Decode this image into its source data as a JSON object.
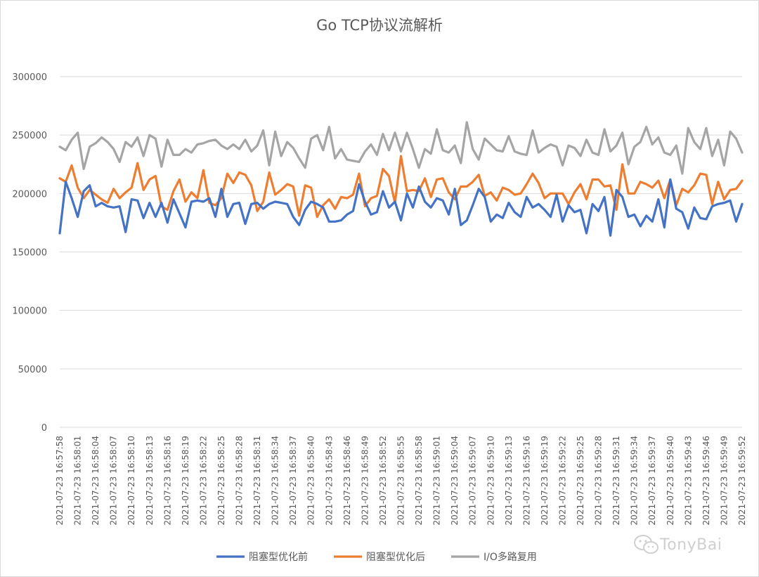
{
  "chart_data": {
    "type": "line",
    "title": "Go TCP协议流解析",
    "ylim": [
      0,
      300000
    ],
    "y_ticks": [
      0,
      50000,
      100000,
      150000,
      200000,
      250000,
      300000
    ],
    "grid": true,
    "legend_position": "bottom",
    "x": [
      "2021-07-23 16:57:58",
      "2021-07-23 16:57:59",
      "2021-07-23 16:58:00",
      "2021-07-23 16:58:01",
      "2021-07-23 16:58:02",
      "2021-07-23 16:58:03",
      "2021-07-23 16:58:04",
      "2021-07-23 16:58:05",
      "2021-07-23 16:58:06",
      "2021-07-23 16:58:07",
      "2021-07-23 16:58:08",
      "2021-07-23 16:58:09",
      "2021-07-23 16:58:10",
      "2021-07-23 16:58:11",
      "2021-07-23 16:58:12",
      "2021-07-23 16:58:13",
      "2021-07-23 16:58:14",
      "2021-07-23 16:58:15",
      "2021-07-23 16:58:16",
      "2021-07-23 16:58:17",
      "2021-07-23 16:58:18",
      "2021-07-23 16:58:19",
      "2021-07-23 16:58:20",
      "2021-07-23 16:58:21",
      "2021-07-23 16:58:22",
      "2021-07-23 16:58:23",
      "2021-07-23 16:58:24",
      "2021-07-23 16:58:25",
      "2021-07-23 16:58:26",
      "2021-07-23 16:58:27",
      "2021-07-23 16:58:28",
      "2021-07-23 16:58:29",
      "2021-07-23 16:58:30",
      "2021-07-23 16:58:31",
      "2021-07-23 16:58:32",
      "2021-07-23 16:58:33",
      "2021-07-23 16:58:34",
      "2021-07-23 16:58:35",
      "2021-07-23 16:58:36",
      "2021-07-23 16:58:37",
      "2021-07-23 16:58:38",
      "2021-07-23 16:58:39",
      "2021-07-23 16:58:40",
      "2021-07-23 16:58:41",
      "2021-07-23 16:58:42",
      "2021-07-23 16:58:43",
      "2021-07-23 16:58:44",
      "2021-07-23 16:58:45",
      "2021-07-23 16:58:46",
      "2021-07-23 16:58:47",
      "2021-07-23 16:58:48",
      "2021-07-23 16:58:49",
      "2021-07-23 16:58:50",
      "2021-07-23 16:58:51",
      "2021-07-23 16:58:52",
      "2021-07-23 16:58:53",
      "2021-07-23 16:58:54",
      "2021-07-23 16:58:55",
      "2021-07-23 16:58:56",
      "2021-07-23 16:58:57",
      "2021-07-23 16:58:58",
      "2021-07-23 16:58:59",
      "2021-07-23 16:59:00",
      "2021-07-23 16:59:01",
      "2021-07-23 16:59:02",
      "2021-07-23 16:59:03",
      "2021-07-23 16:59:04",
      "2021-07-23 16:59:05",
      "2021-07-23 16:59:06",
      "2021-07-23 16:59:07",
      "2021-07-23 16:59:08",
      "2021-07-23 16:59:09",
      "2021-07-23 16:59:10",
      "2021-07-23 16:59:11",
      "2021-07-23 16:59:12",
      "2021-07-23 16:59:13",
      "2021-07-23 16:59:14",
      "2021-07-23 16:59:15",
      "2021-07-23 16:59:16",
      "2021-07-23 16:59:17",
      "2021-07-23 16:59:18",
      "2021-07-23 16:59:19",
      "2021-07-23 16:59:20",
      "2021-07-23 16:59:21",
      "2021-07-23 16:59:22",
      "2021-07-23 16:59:23",
      "2021-07-23 16:59:24",
      "2021-07-23 16:59:25",
      "2021-07-23 16:59:26",
      "2021-07-23 16:59:27",
      "2021-07-23 16:59:28",
      "2021-07-23 16:59:29",
      "2021-07-23 16:59:30",
      "2021-07-23 16:59:31",
      "2021-07-23 16:59:32",
      "2021-07-23 16:59:33",
      "2021-07-23 16:59:34",
      "2021-07-23 16:59:35",
      "2021-07-23 16:59:36",
      "2021-07-23 16:59:37",
      "2021-07-23 16:59:38",
      "2021-07-23 16:59:39",
      "2021-07-23 16:59:40",
      "2021-07-23 16:59:41",
      "2021-07-23 16:59:42",
      "2021-07-23 16:59:43",
      "2021-07-23 16:59:44",
      "2021-07-23 16:59:45",
      "2021-07-23 16:59:46",
      "2021-07-23 16:59:47",
      "2021-07-23 16:59:48",
      "2021-07-23 16:59:49",
      "2021-07-23 16:59:50",
      "2021-07-23 16:59:51",
      "2021-07-23 16:59:52"
    ],
    "x_tick_labels": [
      "2021-07-23 16:57:58",
      "2021-07-23 16:58:01",
      "2021-07-23 16:58:04",
      "2021-07-23 16:58:07",
      "2021-07-23 16:58:10",
      "2021-07-23 16:58:13",
      "2021-07-23 16:58:16",
      "2021-07-23 16:58:19",
      "2021-07-23 16:58:22",
      "2021-07-23 16:58:25",
      "2021-07-23 16:58:28",
      "2021-07-23 16:58:31",
      "2021-07-23 16:58:34",
      "2021-07-23 16:58:37",
      "2021-07-23 16:58:40",
      "2021-07-23 16:58:43",
      "2021-07-23 16:58:46",
      "2021-07-23 16:58:49",
      "2021-07-23 16:58:52",
      "2021-07-23 16:58:55",
      "2021-07-23 16:58:58",
      "2021-07-23 16:59:01",
      "2021-07-23 16:59:04",
      "2021-07-23 16:59:07",
      "2021-07-23 16:59:10",
      "2021-07-23 16:59:13",
      "2021-07-23 16:59:16",
      "2021-07-23 16:59:19",
      "2021-07-23 16:59:22",
      "2021-07-23 16:59:25",
      "2021-07-23 16:59:28",
      "2021-07-23 16:59:31",
      "2021-07-23 16:59:34",
      "2021-07-23 16:59:37",
      "2021-07-23 16:59:40",
      "2021-07-23 16:59:43",
      "2021-07-23 16:59:46",
      "2021-07-23 16:59:49",
      "2021-07-23 16:59:52"
    ],
    "series": [
      {
        "name": "阻塞型优化前",
        "color": "#4472c4",
        "values": [
          166000,
          210000,
          196000,
          180000,
          202000,
          207000,
          189000,
          192000,
          189000,
          188000,
          189000,
          167000,
          195000,
          194000,
          179000,
          192000,
          180000,
          192000,
          175000,
          195000,
          183000,
          171000,
          193000,
          194000,
          193000,
          196000,
          180000,
          204000,
          180000,
          191000,
          192000,
          174000,
          191000,
          192000,
          187000,
          191000,
          193000,
          192000,
          191000,
          180000,
          173000,
          186000,
          193000,
          191000,
          188000,
          176000,
          176000,
          177000,
          182000,
          185000,
          208000,
          193000,
          182000,
          184000,
          202000,
          188000,
          193000,
          177000,
          200000,
          188000,
          206000,
          193000,
          188000,
          196000,
          194000,
          182000,
          204000,
          173000,
          177000,
          190000,
          204000,
          197000,
          176000,
          182000,
          179000,
          192000,
          184000,
          180000,
          197000,
          188000,
          191000,
          186000,
          180000,
          199000,
          176000,
          190000,
          184000,
          186000,
          166000,
          191000,
          185000,
          197000,
          164000,
          203000,
          197000,
          180000,
          182000,
          172000,
          181000,
          176000,
          195000,
          171000,
          212000,
          187000,
          184000,
          170000,
          188000,
          179000,
          178000,
          189000,
          191000,
          192000,
          194000,
          176000,
          191000
        ]
      },
      {
        "name": "阻塞型优化后",
        "color": "#ed7d31",
        "values": [
          213000,
          210000,
          224000,
          205000,
          196000,
          203000,
          199000,
          195000,
          192000,
          204000,
          196000,
          201000,
          205000,
          226000,
          203000,
          212000,
          215000,
          189000,
          186000,
          202000,
          212000,
          193000,
          201000,
          196000,
          220000,
          192000,
          190000,
          196000,
          217000,
          209000,
          218000,
          216000,
          207000,
          185000,
          193000,
          218000,
          199000,
          203000,
          208000,
          206000,
          181000,
          207000,
          205000,
          180000,
          190000,
          195000,
          187000,
          197000,
          196000,
          199000,
          217000,
          189000,
          196000,
          198000,
          221000,
          215000,
          192000,
          232000,
          202000,
          203000,
          202000,
          213000,
          197000,
          212000,
          213000,
          201000,
          195000,
          206000,
          206000,
          210000,
          216000,
          198000,
          201000,
          194000,
          205000,
          203000,
          199000,
          200000,
          208000,
          217000,
          209000,
          196000,
          200000,
          200000,
          200000,
          191000,
          201000,
          208000,
          195000,
          212000,
          212000,
          206000,
          207000,
          186000,
          225000,
          200000,
          200000,
          210000,
          208000,
          205000,
          211000,
          196000,
          212000,
          190000,
          204000,
          201000,
          207000,
          217000,
          216000,
          191000,
          210000,
          195000,
          203000,
          204000,
          211000
        ]
      },
      {
        "name": "I/O多路复用",
        "color": "#a5a5a5",
        "values": [
          240000,
          237000,
          246000,
          252000,
          221000,
          240000,
          243000,
          248000,
          244000,
          238000,
          227000,
          244000,
          240000,
          248000,
          232000,
          250000,
          247000,
          223000,
          246000,
          233000,
          233000,
          238000,
          235000,
          242000,
          243000,
          245000,
          246000,
          241000,
          238000,
          242000,
          238000,
          246000,
          236000,
          241000,
          254000,
          224000,
          253000,
          232000,
          244000,
          239000,
          230000,
          222000,
          247000,
          250000,
          237000,
          257000,
          230000,
          238000,
          229000,
          228000,
          227000,
          236000,
          242000,
          233000,
          251000,
          237000,
          252000,
          236000,
          252000,
          238000,
          222000,
          238000,
          234000,
          255000,
          237000,
          235000,
          241000,
          226000,
          261000,
          238000,
          229000,
          247000,
          242000,
          237000,
          236000,
          249000,
          236000,
          234000,
          233000,
          254000,
          235000,
          239000,
          242000,
          240000,
          224000,
          241000,
          239000,
          232000,
          246000,
          235000,
          233000,
          255000,
          236000,
          241000,
          252000,
          225000,
          240000,
          244000,
          257000,
          242000,
          248000,
          235000,
          233000,
          241000,
          217000,
          256000,
          244000,
          238000,
          256000,
          232000,
          246000,
          224000,
          253000,
          247000,
          235000
        ]
      }
    ]
  },
  "watermark": {
    "text": "TonyBai"
  }
}
